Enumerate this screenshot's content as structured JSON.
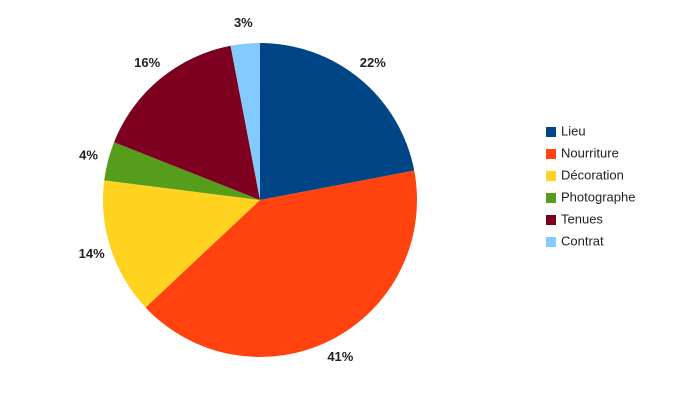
{
  "chart_data": {
    "type": "pie",
    "categories": [
      "Lieu",
      "Nourriture",
      "Décoration",
      "Photographe",
      "Tenues",
      "Contrat"
    ],
    "values": [
      22,
      41,
      14,
      4,
      16,
      3
    ],
    "value_labels": [
      "22%",
      "41%",
      "14%",
      "4%",
      "16%",
      "3%"
    ],
    "colors": [
      "#004586",
      "#ff420e",
      "#ffd320",
      "#579d1c",
      "#7e0021",
      "#83caff"
    ],
    "legend": "right"
  }
}
